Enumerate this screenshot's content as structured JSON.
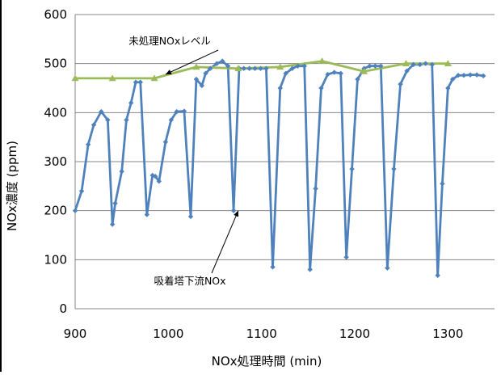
{
  "chart_data": {
    "type": "line",
    "title": "",
    "xlabel": "NOx処理時間 (min)",
    "ylabel": "NOx濃度 (ppm)",
    "xlim": [
      900,
      1350
    ],
    "ylim": [
      0,
      600
    ],
    "xticks": [
      900,
      1000,
      1100,
      1200,
      1300
    ],
    "yticks": [
      0,
      100,
      200,
      300,
      400,
      500,
      600
    ],
    "grid": "horizontal",
    "legend": "none",
    "annotations": [
      {
        "text": "未処理NOxレベル",
        "points_to": {
          "x": 997,
          "y": 478
        }
      },
      {
        "text": "吸着塔下流NOx",
        "points_to": {
          "x": 1075,
          "y": 200
        }
      }
    ],
    "series": [
      {
        "color": "#4f81bd",
        "marker": "diamond",
        "x": [
          900,
          907,
          914,
          920,
          928,
          935,
          940,
          943,
          950,
          955,
          960,
          965,
          970,
          977,
          983,
          986,
          990,
          997,
          1003,
          1009,
          1017,
          1024,
          1030,
          1036,
          1040,
          1045,
          1052,
          1058,
          1064,
          1070,
          1076,
          1081,
          1087,
          1093,
          1099,
          1105,
          1112,
          1120,
          1126,
          1133,
          1139,
          1146,
          1152,
          1158,
          1164,
          1171,
          1178,
          1185,
          1191,
          1197,
          1203,
          1210,
          1216,
          1222,
          1228,
          1235,
          1242,
          1249,
          1256,
          1263,
          1270,
          1276,
          1283,
          1289,
          1294,
          1300,
          1305,
          1311,
          1317,
          1324,
          1331,
          1338
        ],
        "y": [
          200,
          240,
          335,
          375,
          402,
          385,
          172,
          215,
          280,
          385,
          420,
          462,
          462,
          192,
          272,
          270,
          260,
          340,
          385,
          402,
          403,
          188,
          468,
          455,
          480,
          490,
          500,
          505,
          495,
          200,
          490,
          490,
          490,
          490,
          490,
          490,
          85,
          450,
          480,
          490,
          495,
          495,
          80,
          245,
          450,
          478,
          482,
          480,
          105,
          285,
          468,
          490,
          495,
          495,
          495,
          83,
          285,
          458,
          485,
          498,
          498,
          500,
          498,
          68,
          255,
          450,
          468,
          476,
          476,
          477,
          477,
          475
        ]
      },
      {
        "color": "#9bbb59",
        "marker": "triangle",
        "x": [
          900,
          940,
          985,
          1030,
          1075,
          1120,
          1165,
          1210,
          1255,
          1300
        ],
        "y": [
          470,
          470,
          470,
          493,
          490,
          493,
          505,
          484,
          500,
          500
        ]
      }
    ]
  }
}
